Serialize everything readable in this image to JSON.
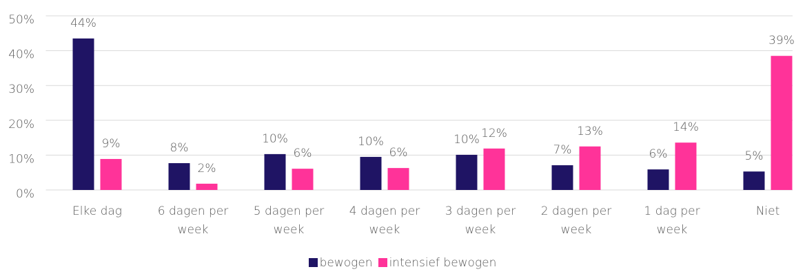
{
  "chart_data": {
    "type": "bar",
    "categories": [
      "Elke dag",
      "6 dagen per week",
      "5 dagen per week",
      "4 dagen per week",
      "3 dagen per week",
      "2 dagen per week",
      "1 dag per week",
      "Niet"
    ],
    "series": [
      {
        "name": "bewogen",
        "color": "#1f1464",
        "values": [
          43.5,
          7.7,
          10.3,
          9.5,
          10.1,
          7.1,
          5.9,
          5.3
        ],
        "value_labels": [
          "44%",
          "8%",
          "10%",
          "10%",
          "10%",
          "7%",
          "6%",
          "5%"
        ]
      },
      {
        "name": "intensief bewogen",
        "color": "#ff3399",
        "values": [
          8.9,
          1.8,
          6.1,
          6.3,
          11.9,
          12.5,
          13.6,
          38.5
        ],
        "value_labels": [
          "9%",
          "2%",
          "6%",
          "6%",
          "12%",
          "13%",
          "14%",
          "39%"
        ]
      }
    ],
    "ylim": [
      0,
      50
    ],
    "yticks": [
      {
        "value": 0,
        "label": "0%"
      },
      {
        "value": 10,
        "label": "10%"
      },
      {
        "value": 20,
        "label": "20%"
      },
      {
        "value": 30,
        "label": "30%"
      },
      {
        "value": 40,
        "label": "40%"
      },
      {
        "value": 50,
        "label": "50%"
      }
    ],
    "grid": true,
    "legend": "bottom"
  }
}
